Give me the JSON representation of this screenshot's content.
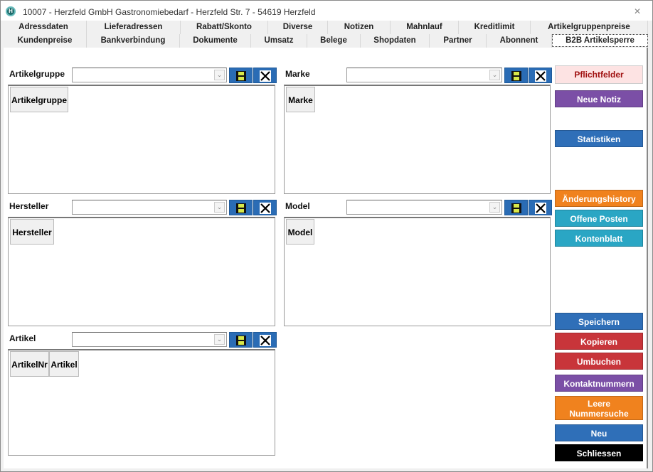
{
  "window": {
    "title": "10007  -  Herzfeld GmbH Gastronomiebedarf - Herzfeld Str. 7 - 54619 Herzfeld",
    "icon": "H"
  },
  "tabs_row1": [
    "Adressdaten",
    "Lieferadressen",
    "Rabatt/Skonto",
    "Diverse",
    "Notizen",
    "Mahnlauf",
    "Kreditlimit",
    "Artikelgruppenpreise"
  ],
  "tabs_row2": [
    "Kundenpreise",
    "Bankverbindung",
    "Dokumente",
    "Umsatz",
    "Belege",
    "Shopdaten",
    "Partner",
    "Abonnent",
    "B2B Artikelsperre"
  ],
  "active_tab": "B2B Artikelsperre",
  "panels": {
    "artikelgruppe": {
      "label": "Artikelgruppe",
      "value": "",
      "columns": [
        "Artikelgruppe"
      ]
    },
    "marke": {
      "label": "Marke",
      "value": "",
      "columns": [
        "Marke"
      ]
    },
    "hersteller": {
      "label": "Hersteller",
      "value": "",
      "columns": [
        "Hersteller"
      ]
    },
    "model": {
      "label": "Model",
      "value": "",
      "columns": [
        "Model"
      ]
    },
    "artikel": {
      "label": "Artikel",
      "value": "",
      "columns": [
        "ArtikelNr",
        "Artikel"
      ]
    }
  },
  "buttons": [
    {
      "label": "Pflichtfelder",
      "color": "#fde3e3"
    },
    {
      "label": "Neue Notiz",
      "color": "#7b4fa6"
    },
    {
      "label": "Statistiken",
      "color": "#2f6fb8"
    },
    {
      "label": "Änderungshistory",
      "color": "#f0821e"
    },
    {
      "label": "Offene Posten",
      "color": "#2aa6c4"
    },
    {
      "label": "Kontenblatt",
      "color": "#2aa6c4"
    },
    {
      "label": "Speichern",
      "color": "#2f6fb8"
    },
    {
      "label": "Kopieren",
      "color": "#c8353a"
    },
    {
      "label": "Umbuchen",
      "color": "#c8353a"
    },
    {
      "label": "Kontaktnummern",
      "color": "#7b4fa6"
    },
    {
      "label": "Leere Nummersuche",
      "color": "#f0821e"
    },
    {
      "label": "Neu",
      "color": "#2f6fb8"
    },
    {
      "label": "Schliessen",
      "color": "#000000"
    }
  ]
}
